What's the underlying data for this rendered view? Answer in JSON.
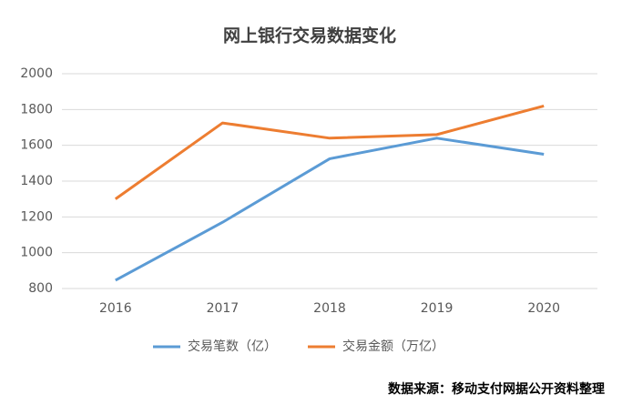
{
  "chart_data": {
    "type": "line",
    "title": "网上银行交易数据变化",
    "categories": [
      "2016",
      "2017",
      "2018",
      "2019",
      "2020"
    ],
    "series": [
      {
        "name": "交易笔数（亿）",
        "color": "#5b9bd5",
        "values": [
          846,
          1170,
          1525,
          1640,
          1550
        ]
      },
      {
        "name": "交易金额（万亿）",
        "color": "#ed7d31",
        "values": [
          1300,
          1725,
          1640,
          1660,
          1820
        ]
      }
    ],
    "ylim": [
      800,
      2000
    ],
    "yticks": [
      800,
      1000,
      1200,
      1400,
      1600,
      1800,
      2000
    ],
    "grid": true,
    "legend": "bottom",
    "source": "数据来源：移动支付网据公开资料整理"
  }
}
